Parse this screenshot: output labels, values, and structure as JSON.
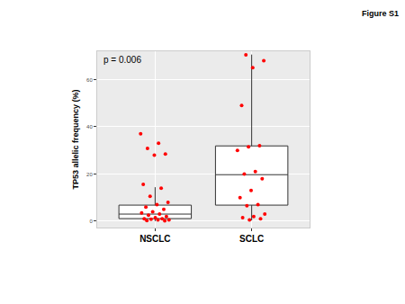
{
  "chart_data": {
    "type": "box",
    "title": "Figure S1",
    "annotations": [
      "p = 0.006"
    ],
    "y_label": "TP53 allelic frequency (%)",
    "categories": [
      "NSCLC",
      "SCLC"
    ],
    "boxes": [
      {
        "q1": 1.1,
        "median": 3.0,
        "q3": 6.8,
        "lower": 0.0,
        "upper": 14.4
      },
      {
        "q1": 6.8,
        "median": 19.7,
        "q3": 31.9,
        "lower": 0.3,
        "upper": 70.6
      }
    ],
    "points": [
      [
        37.0,
        33.0,
        30.8,
        28.5,
        28.0,
        15.6,
        14.0,
        10.5,
        8.0,
        7.0,
        6.0,
        5.0,
        4.0,
        3.5,
        3.0,
        2.5,
        2.0,
        1.5,
        1.0,
        1.0,
        0.8,
        0.5,
        0.5,
        0.3,
        0.2
      ],
      [
        70.5,
        68.0,
        65.0,
        49.0,
        32.0,
        31.5,
        30.0,
        21.0,
        20.0,
        18.0,
        13.0,
        10.0,
        7.0,
        6.5,
        3.0,
        2.0,
        1.5,
        1.0,
        0.5
      ]
    ],
    "color": "#ff0000",
    "ylim": [
      -2.7,
      72
    ],
    "yticks": [
      0,
      20,
      40,
      60
    ],
    "grid": true
  }
}
